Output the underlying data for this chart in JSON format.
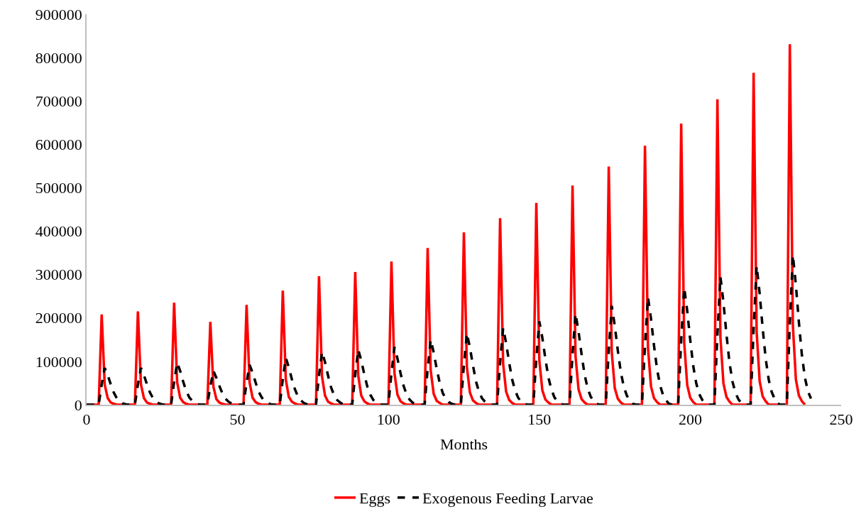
{
  "chart_data": {
    "type": "line",
    "xlabel": "Months",
    "xlim": [
      0,
      250
    ],
    "xticks": [
      0,
      50,
      100,
      150,
      200,
      250
    ],
    "ylim": [
      0,
      900000
    ],
    "yticks": [
      0,
      100000,
      200000,
      300000,
      400000,
      500000,
      600000,
      700000,
      800000,
      900000
    ],
    "grid": false,
    "legend": "bottom",
    "marker": "none",
    "series": [
      {
        "name": "Eggs",
        "color": "#ff0000",
        "line_style": "solid",
        "x": [
          0,
          4,
          5,
          6,
          7,
          8,
          9,
          10,
          16,
          17,
          18,
          19,
          20,
          21,
          22,
          28,
          29,
          30,
          31,
          32,
          33,
          34,
          40,
          41,
          42,
          43,
          44,
          45,
          46,
          52,
          53,
          54,
          55,
          56,
          57,
          58,
          64,
          65,
          66,
          67,
          68,
          69,
          70,
          76,
          77,
          78,
          79,
          80,
          81,
          82,
          88,
          89,
          90,
          91,
          92,
          93,
          94,
          100,
          101,
          102,
          103,
          104,
          105,
          106,
          112,
          113,
          114,
          115,
          116,
          117,
          118,
          124,
          125,
          126,
          127,
          128,
          129,
          130,
          136,
          137,
          138,
          139,
          140,
          141,
          142,
          148,
          149,
          150,
          151,
          152,
          153,
          154,
          160,
          161,
          162,
          163,
          164,
          165,
          166,
          172,
          173,
          174,
          175,
          176,
          177,
          178,
          184,
          185,
          186,
          187,
          188,
          189,
          190,
          196,
          197,
          198,
          199,
          200,
          201,
          202,
          208,
          209,
          210,
          211,
          212,
          213,
          214,
          220,
          221,
          222,
          223,
          224,
          225,
          226,
          232,
          233,
          234,
          235,
          236,
          237,
          238
        ],
        "values": [
          0,
          0,
          208000,
          46000,
          15000,
          5000,
          2000,
          0,
          0,
          215000,
          47000,
          15000,
          5000,
          2000,
          0,
          0,
          235000,
          52000,
          16000,
          6000,
          2000,
          0,
          0,
          191000,
          42000,
          13000,
          5000,
          2000,
          0,
          0,
          230000,
          51000,
          16000,
          6000,
          2000,
          0,
          0,
          263000,
          58000,
          18000,
          7000,
          3000,
          0,
          0,
          296000,
          65000,
          21000,
          7000,
          3000,
          0,
          0,
          306000,
          67000,
          21000,
          8000,
          3000,
          0,
          0,
          330000,
          73000,
          23000,
          8000,
          3000,
          0,
          0,
          361000,
          79000,
          25000,
          9000,
          4000,
          0,
          0,
          397000,
          87000,
          28000,
          10000,
          4000,
          0,
          0,
          430000,
          95000,
          30000,
          11000,
          4000,
          0,
          0,
          465000,
          102000,
          33000,
          12000,
          5000,
          0,
          0,
          505000,
          111000,
          35000,
          13000,
          5000,
          0,
          0,
          549000,
          121000,
          38000,
          14000,
          5000,
          0,
          0,
          597000,
          131000,
          42000,
          15000,
          6000,
          0,
          0,
          648000,
          143000,
          45000,
          16000,
          6000,
          0,
          0,
          704000,
          155000,
          49000,
          18000,
          7000,
          0,
          0,
          765000,
          168000,
          54000,
          19000,
          8000,
          0,
          0,
          831000,
          183000,
          58000,
          21000,
          8000,
          0
        ]
      },
      {
        "name": "Exogenous Feeding Larvae",
        "color": "#000000",
        "line_style": "dashed",
        "x": [
          0,
          4,
          5,
          6,
          7,
          8,
          9,
          10,
          11,
          12,
          13,
          14,
          16,
          17,
          18,
          19,
          20,
          21,
          22,
          23,
          24,
          25,
          26,
          28,
          29,
          30,
          31,
          32,
          33,
          34,
          35,
          36,
          37,
          38,
          40,
          41,
          42,
          43,
          44,
          45,
          46,
          47,
          48,
          49,
          50,
          52,
          53,
          54,
          55,
          56,
          57,
          58,
          59,
          60,
          61,
          62,
          64,
          65,
          66,
          67,
          68,
          69,
          70,
          71,
          72,
          73,
          74,
          76,
          77,
          78,
          79,
          80,
          81,
          82,
          83,
          84,
          85,
          86,
          88,
          89,
          90,
          91,
          92,
          93,
          94,
          95,
          96,
          97,
          98,
          100,
          101,
          102,
          103,
          104,
          105,
          106,
          107,
          108,
          109,
          110,
          112,
          113,
          114,
          115,
          116,
          117,
          118,
          119,
          120,
          121,
          122,
          124,
          125,
          126,
          127,
          128,
          129,
          130,
          131,
          132,
          133,
          134,
          136,
          137,
          138,
          139,
          140,
          141,
          142,
          143,
          144,
          145,
          146,
          148,
          149,
          150,
          151,
          152,
          153,
          154,
          155,
          156,
          157,
          158,
          160,
          161,
          162,
          163,
          164,
          165,
          166,
          167,
          168,
          169,
          170,
          172,
          173,
          174,
          175,
          176,
          177,
          178,
          179,
          180,
          181,
          182,
          184,
          185,
          186,
          187,
          188,
          189,
          190,
          191,
          192,
          193,
          194,
          196,
          197,
          198,
          199,
          200,
          201,
          202,
          203,
          204,
          205,
          206,
          208,
          209,
          210,
          211,
          212,
          213,
          214,
          215,
          216,
          217,
          218,
          220,
          221,
          222,
          223,
          224,
          225,
          226,
          227,
          228,
          229,
          230,
          232,
          233,
          234,
          235,
          236,
          237,
          238,
          239,
          240
        ],
        "values": [
          0,
          0,
          47000,
          85000,
          68000,
          47000,
          28000,
          15000,
          8000,
          3000,
          1000,
          0,
          0,
          47000,
          85000,
          68000,
          47000,
          28000,
          15000,
          8000,
          3000,
          1000,
          0,
          0,
          53000,
          97000,
          78000,
          53000,
          32000,
          17000,
          9000,
          4000,
          1000,
          0,
          0,
          43000,
          78000,
          62000,
          43000,
          26000,
          14000,
          7000,
          3000,
          1000,
          0,
          0,
          51000,
          92000,
          74000,
          51000,
          30000,
          17000,
          8000,
          4000,
          1000,
          0,
          0,
          59000,
          108000,
          86000,
          59000,
          36000,
          19000,
          10000,
          4000,
          1000,
          0,
          0,
          67000,
          122000,
          98000,
          67000,
          40000,
          22000,
          11000,
          5000,
          1000,
          0,
          0,
          70000,
          127000,
          102000,
          70000,
          42000,
          23000,
          11000,
          5000,
          1000,
          0,
          0,
          73000,
          133000,
          106000,
          73000,
          44000,
          24000,
          12000,
          5000,
          1000,
          0,
          0,
          83000,
          150000,
          120000,
          83000,
          50000,
          27000,
          14000,
          6000,
          2000,
          0,
          0,
          91000,
          165000,
          132000,
          91000,
          54000,
          30000,
          15000,
          7000,
          2000,
          0,
          0,
          97000,
          177000,
          142000,
          97000,
          58000,
          32000,
          16000,
          7000,
          2000,
          0,
          0,
          106000,
          192000,
          154000,
          106000,
          63000,
          35000,
          17000,
          8000,
          2000,
          0,
          0,
          116000,
          210000,
          168000,
          116000,
          69000,
          38000,
          19000,
          8000,
          2000,
          0,
          0,
          125000,
          228000,
          182000,
          125000,
          75000,
          41000,
          21000,
          9000,
          2000,
          0,
          0,
          136000,
          248000,
          198000,
          136000,
          82000,
          45000,
          22000,
          10000,
          2000,
          0,
          0,
          149000,
          270000,
          216000,
          149000,
          89000,
          49000,
          24000,
          11000,
          3000,
          0,
          0,
          162000,
          295000,
          236000,
          162000,
          97000,
          53000,
          27000,
          12000,
          3000,
          0,
          0,
          176000,
          320000,
          256000,
          176000,
          106000,
          58000,
          29000,
          13000,
          3000,
          0,
          0,
          190000,
          345000,
          276000,
          190000,
          114000,
          62000,
          31000,
          14000
        ]
      }
    ]
  }
}
